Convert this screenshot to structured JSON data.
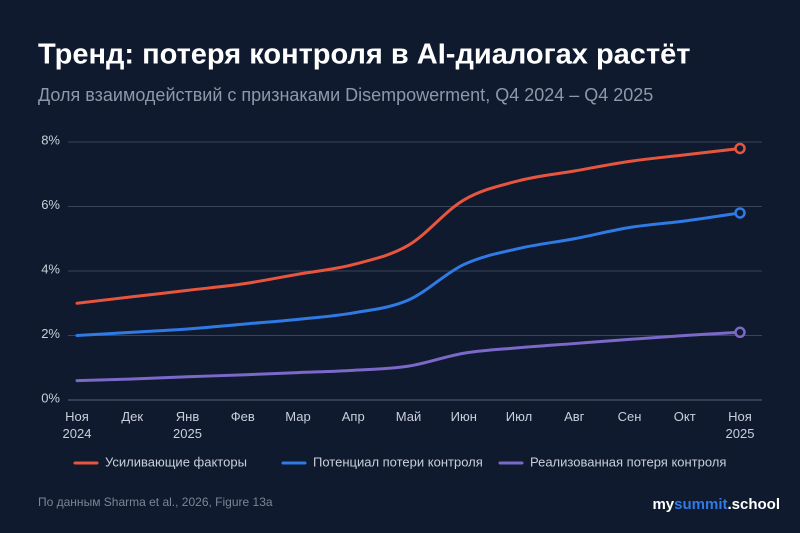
{
  "chart_data": {
    "type": "line",
    "title": "Тренд: потеря контроля в AI-диалогах растёт",
    "subtitle": "Доля взаимодействий с признаками Disempowerment, Q4 2024 – Q4 2025",
    "categories": [
      "Ноя\n2024",
      "Дек",
      "Янв\n2025",
      "Фев",
      "Мар",
      "Апр",
      "Май",
      "Июн",
      "Июл",
      "Авг",
      "Сен",
      "Окт",
      "Ноя\n2025"
    ],
    "series": [
      {
        "name": "Усиливающие факторы",
        "color": "#e8553e",
        "values": [
          3.0,
          3.2,
          3.4,
          3.6,
          3.9,
          4.2,
          4.8,
          6.2,
          6.8,
          7.1,
          7.4,
          7.6,
          7.8
        ]
      },
      {
        "name": "Потенциал потери контроля",
        "color": "#2f7ae5",
        "values": [
          2.0,
          2.1,
          2.2,
          2.35,
          2.5,
          2.7,
          3.1,
          4.2,
          4.7,
          5.0,
          5.35,
          5.55,
          5.8
        ]
      },
      {
        "name": "Реализованная потеря контроля",
        "color": "#7b68c8",
        "values": [
          0.6,
          0.65,
          0.72,
          0.78,
          0.85,
          0.92,
          1.05,
          1.45,
          1.62,
          1.75,
          1.88,
          2.0,
          2.1
        ]
      }
    ],
    "ylim": [
      0,
      8
    ],
    "yticks": [
      {
        "value": 0,
        "label": "0%"
      },
      {
        "value": 2,
        "label": "2%"
      },
      {
        "value": 4,
        "label": "4%"
      },
      {
        "value": 6,
        "label": "6%"
      },
      {
        "value": 8,
        "label": "8%"
      }
    ],
    "grid": true,
    "legend": "bottom",
    "source": "По данным Sharma et al., 2026, Figure 13a",
    "logo": [
      "my",
      "summit",
      ".school"
    ]
  }
}
